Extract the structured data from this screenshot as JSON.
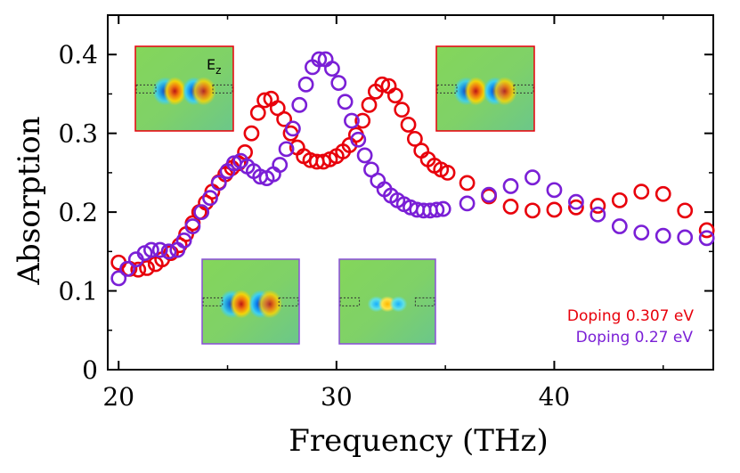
{
  "chart_data": {
    "type": "scatter",
    "title": "",
    "xlabel": "Frequency (THz)",
    "ylabel": "Absorption",
    "xlim": [
      19.5,
      47.3
    ],
    "ylim": [
      0,
      0.45
    ],
    "xticks": [
      20,
      30,
      40
    ],
    "xtick_labels": [
      "20",
      "30",
      "40"
    ],
    "yticks": [
      0,
      0.1,
      0.2,
      0.3,
      0.4
    ],
    "ytick_labels": [
      "0",
      "0.1",
      "0.2",
      "0.3",
      "0.4"
    ],
    "legend": [
      {
        "label": "Doping 0.307 eV",
        "color": "#e8000b"
      },
      {
        "label": "Doping 0.27 eV",
        "color": "#7a1fd6"
      }
    ],
    "series": [
      {
        "name": "Doping 0.307 eV",
        "color": "#e8000b",
        "x": [
          20.0,
          20.5,
          20.9,
          21.3,
          21.7,
          22.0,
          22.4,
          22.8,
          23.1,
          23.4,
          23.7,
          24.0,
          24.3,
          24.6,
          24.9,
          25.2,
          25.5,
          25.8,
          26.1,
          26.4,
          26.7,
          27.0,
          27.3,
          27.6,
          27.9,
          28.2,
          28.5,
          28.8,
          29.1,
          29.4,
          29.7,
          30.0,
          30.3,
          30.6,
          30.9,
          31.2,
          31.5,
          31.8,
          32.1,
          32.4,
          32.7,
          33.0,
          33.3,
          33.6,
          33.9,
          34.2,
          34.5,
          34.8,
          35.1,
          36.0,
          37.0,
          38.0,
          39.0,
          40.0,
          41.0,
          42.0,
          43.0,
          44.0,
          45.0,
          46.0,
          47.0
        ],
        "y": [
          0.136,
          0.128,
          0.127,
          0.129,
          0.134,
          0.14,
          0.148,
          0.158,
          0.172,
          0.186,
          0.2,
          0.212,
          0.226,
          0.238,
          0.248,
          0.256,
          0.262,
          0.276,
          0.3,
          0.326,
          0.342,
          0.344,
          0.332,
          0.318,
          0.3,
          0.282,
          0.271,
          0.266,
          0.264,
          0.264,
          0.267,
          0.271,
          0.277,
          0.285,
          0.298,
          0.316,
          0.336,
          0.353,
          0.362,
          0.36,
          0.348,
          0.33,
          0.311,
          0.293,
          0.278,
          0.267,
          0.259,
          0.254,
          0.25,
          0.237,
          0.22,
          0.207,
          0.202,
          0.203,
          0.206,
          0.208,
          0.215,
          0.226,
          0.223,
          0.202,
          0.177
        ]
      },
      {
        "name": "Doping 0.27 eV",
        "color": "#7a1fd6",
        "x": [
          20.0,
          20.4,
          20.8,
          21.2,
          21.5,
          21.9,
          22.3,
          22.7,
          23.0,
          23.4,
          23.8,
          24.2,
          24.6,
          25.0,
          25.3,
          25.6,
          25.9,
          26.2,
          26.5,
          26.8,
          27.1,
          27.4,
          27.7,
          28.0,
          28.3,
          28.6,
          28.9,
          29.2,
          29.5,
          29.8,
          30.1,
          30.4,
          30.7,
          31.0,
          31.3,
          31.6,
          31.9,
          32.2,
          32.5,
          32.8,
          33.1,
          33.4,
          33.7,
          34.0,
          34.3,
          34.6,
          34.9,
          36.0,
          37.0,
          38.0,
          39.0,
          40.0,
          41.0,
          42.0,
          43.0,
          44.0,
          45.0,
          46.0,
          47.0
        ],
        "y": [
          0.116,
          0.128,
          0.14,
          0.148,
          0.152,
          0.152,
          0.15,
          0.152,
          0.164,
          0.182,
          0.2,
          0.218,
          0.237,
          0.252,
          0.262,
          0.265,
          0.258,
          0.252,
          0.245,
          0.243,
          0.248,
          0.26,
          0.28,
          0.306,
          0.336,
          0.362,
          0.384,
          0.394,
          0.394,
          0.382,
          0.364,
          0.34,
          0.316,
          0.292,
          0.272,
          0.254,
          0.24,
          0.229,
          0.221,
          0.215,
          0.21,
          0.206,
          0.203,
          0.202,
          0.202,
          0.203,
          0.204,
          0.211,
          0.222,
          0.233,
          0.244,
          0.228,
          0.213,
          0.197,
          0.182,
          0.174,
          0.17,
          0.168,
          0.167
        ]
      }
    ],
    "insets": [
      {
        "id": "top-left",
        "border_color": "#e8000b",
        "label": "Ez",
        "label_main": "E",
        "label_sub": "z"
      },
      {
        "id": "top-right",
        "border_color": "#e8000b"
      },
      {
        "id": "bottom-left",
        "border_color": "#8a4fd8"
      },
      {
        "id": "bottom-center",
        "border_color": "#8a4fd8"
      }
    ]
  }
}
